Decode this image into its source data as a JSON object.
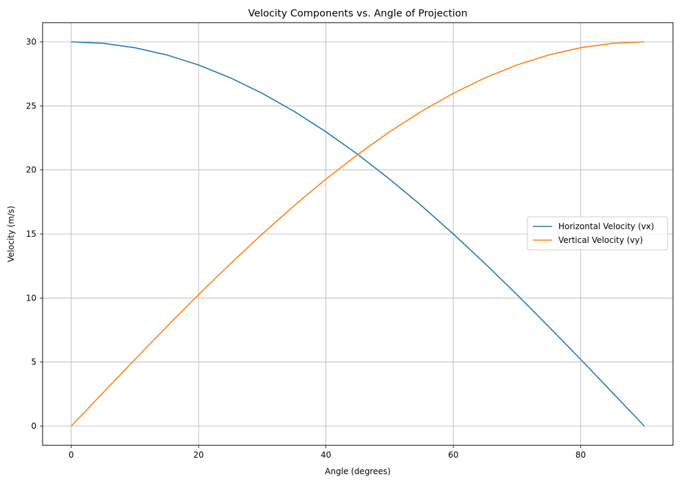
{
  "chart_data": {
    "type": "line",
    "title": "Velocity Components vs. Angle of Projection",
    "xlabel": "Angle (degrees)",
    "ylabel": "Velocity (m/s)",
    "xlim": [
      -4.5,
      94.5
    ],
    "ylim": [
      -1.5,
      31.5
    ],
    "xticks": [
      0,
      20,
      40,
      60,
      80
    ],
    "yticks": [
      0,
      5,
      10,
      15,
      20,
      25,
      30
    ],
    "grid": true,
    "legend": "center-right",
    "initial_velocity": 30,
    "x": [
      0,
      5,
      10,
      15,
      20,
      25,
      30,
      35,
      40,
      45,
      50,
      55,
      60,
      65,
      70,
      75,
      80,
      85,
      90
    ],
    "series": [
      {
        "name": "Horizontal Velocity (vx)",
        "color": "#1f77b4",
        "values": [
          30.0,
          29.89,
          29.54,
          28.98,
          28.19,
          27.19,
          25.98,
          24.57,
          22.98,
          21.21,
          19.28,
          17.21,
          15.0,
          12.68,
          10.26,
          7.76,
          5.21,
          2.61,
          0.0
        ]
      },
      {
        "name": "Vertical Velocity (vy)",
        "color": "#ff7f0e",
        "values": [
          0.0,
          2.61,
          5.21,
          7.76,
          10.26,
          12.68,
          15.0,
          17.21,
          19.28,
          21.21,
          22.98,
          24.57,
          25.98,
          27.19,
          28.19,
          28.98,
          29.54,
          29.89,
          30.0
        ]
      }
    ]
  }
}
